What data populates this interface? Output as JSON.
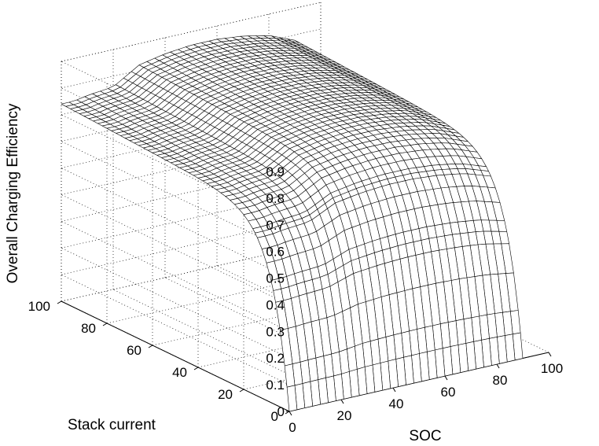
{
  "chart_data": {
    "type": "surface",
    "title": "",
    "xlabel": "SOC",
    "ylabel": "Stack current",
    "zlabel": "Overall Charging Efficiency",
    "xlim": [
      0,
      100
    ],
    "ylim": [
      0,
      100
    ],
    "zlim": [
      0,
      0.9
    ],
    "xticks": [
      "0",
      "20",
      "40",
      "60",
      "80",
      "100"
    ],
    "yticks": [
      "0",
      "20",
      "40",
      "60",
      "80",
      "100"
    ],
    "zticks": [
      "0",
      "0.1",
      "0.2",
      "0.3",
      "0.4",
      "0.5",
      "0.6",
      "0.7",
      "0.8",
      "0.9"
    ],
    "grid": true,
    "colormap": "white faces, black edges",
    "surface": {
      "description_values": "efficiency rises steeply from 0 at zero current to ~0.7-0.85 plateau; plateau ~0.75 at low SOC, ~0.8-0.85 at mid SOC, drops toward 0.75 at high SOC",
      "soc_points": [
        0,
        5,
        10,
        20,
        30,
        40,
        50,
        60,
        70,
        80,
        90
      ],
      "current_points": [
        0,
        1,
        2,
        4,
        7,
        10,
        15,
        20,
        30,
        40,
        50,
        60,
        70,
        80,
        90,
        100
      ],
      "plateau_by_soc": [
        0.74,
        0.74,
        0.75,
        0.76,
        0.82,
        0.84,
        0.85,
        0.85,
        0.84,
        0.82,
        0.78
      ]
    }
  }
}
